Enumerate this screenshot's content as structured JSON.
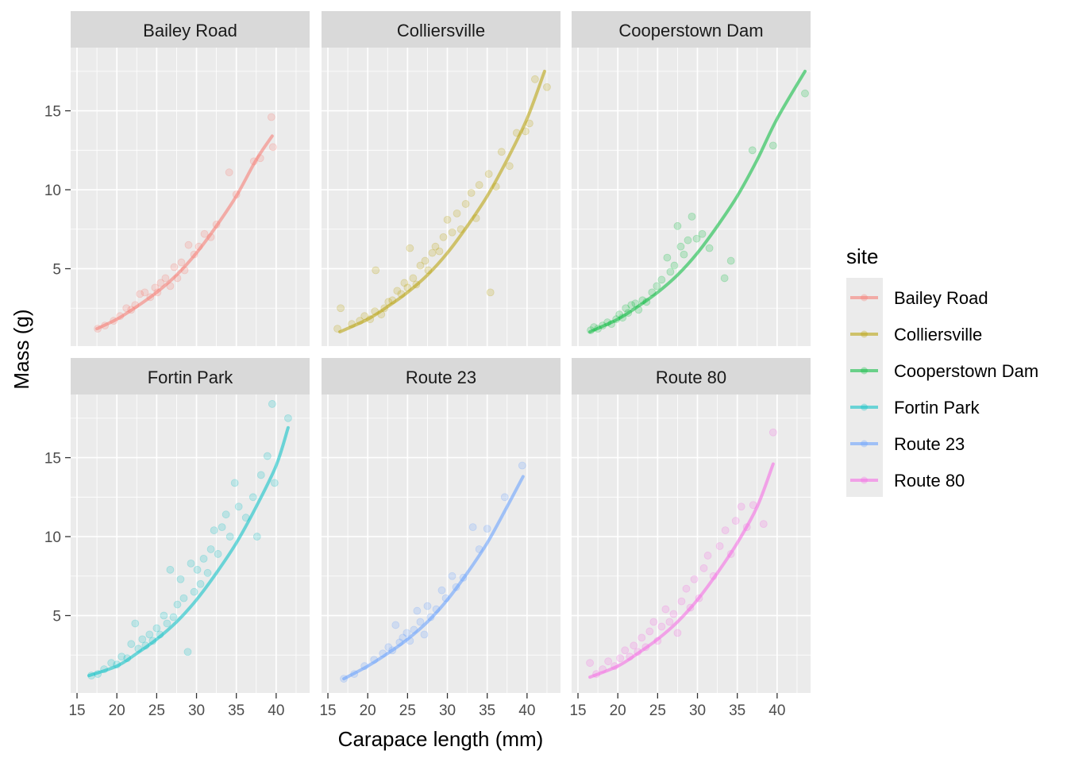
{
  "chart_data": {
    "type": "scatter",
    "xlabel": "Carapace length (mm)",
    "ylabel": "Mass (g)",
    "xlim": [
      14.2,
      44.2
    ],
    "ylim": [
      0.1,
      19.0
    ],
    "x_ticks": [
      15,
      20,
      25,
      30,
      35,
      40
    ],
    "y_ticks": [
      5,
      10,
      15
    ],
    "grid": true,
    "facet_layout": "2 rows x 3 columns, shared axes",
    "legend": {
      "title": "site",
      "position": "right"
    },
    "point_alpha": 0.2,
    "fit": "smooth curve per panel",
    "panels": [
      {
        "name": "Bailey Road",
        "color": "#F8766D",
        "curve": {
          "x": [
            17.5,
            20,
            22.5,
            25,
            27.5,
            30,
            32.5,
            35,
            37.5,
            39.5
          ],
          "y": [
            1.2,
            1.8,
            2.6,
            3.5,
            4.6,
            6.0,
            7.7,
            9.6,
            11.9,
            13.4
          ]
        },
        "points": [
          [
            17.6,
            1.2
          ],
          [
            18.5,
            1.4
          ],
          [
            19.6,
            1.7
          ],
          [
            20.4,
            2.0
          ],
          [
            21.2,
            2.5
          ],
          [
            21.8,
            2.4
          ],
          [
            22.3,
            2.7
          ],
          [
            22.9,
            3.4
          ],
          [
            23.5,
            3.5
          ],
          [
            24.2,
            3.2
          ],
          [
            24.8,
            3.8
          ],
          [
            25.1,
            3.5
          ],
          [
            25.5,
            4.1
          ],
          [
            26.1,
            4.4
          ],
          [
            26.7,
            3.9
          ],
          [
            27.2,
            5.1
          ],
          [
            27.6,
            4.4
          ],
          [
            28.1,
            5.4
          ],
          [
            28.5,
            4.9
          ],
          [
            29.0,
            6.5
          ],
          [
            29.7,
            5.9
          ],
          [
            30.3,
            6.4
          ],
          [
            31.0,
            7.2
          ],
          [
            31.8,
            7.0
          ],
          [
            32.5,
            7.8
          ],
          [
            34.1,
            11.1
          ],
          [
            35.0,
            9.7
          ],
          [
            37.2,
            11.8
          ],
          [
            38.0,
            12.0
          ],
          [
            39.4,
            14.6
          ],
          [
            39.6,
            12.7
          ]
        ]
      },
      {
        "name": "Colliersville",
        "color": "#B79F00",
        "curve": {
          "x": [
            16.5,
            20,
            22.5,
            25,
            27.5,
            30,
            32.5,
            35,
            37.5,
            40,
            42.2
          ],
          "y": [
            1.0,
            1.8,
            2.6,
            3.5,
            4.6,
            6.0,
            7.7,
            9.6,
            11.9,
            14.5,
            17.5
          ]
        },
        "points": [
          [
            16.2,
            1.2
          ],
          [
            16.6,
            2.5
          ],
          [
            18.0,
            1.5
          ],
          [
            19.0,
            1.7
          ],
          [
            19.6,
            2.0
          ],
          [
            20.3,
            1.8
          ],
          [
            20.9,
            2.3
          ],
          [
            21.0,
            4.9
          ],
          [
            21.7,
            2.1
          ],
          [
            22.1,
            2.5
          ],
          [
            22.6,
            2.9
          ],
          [
            23.1,
            3.0
          ],
          [
            23.7,
            3.6
          ],
          [
            24.2,
            3.4
          ],
          [
            24.6,
            4.1
          ],
          [
            25.0,
            3.8
          ],
          [
            25.3,
            6.3
          ],
          [
            25.7,
            4.4
          ],
          [
            26.1,
            4.0
          ],
          [
            26.6,
            5.2
          ],
          [
            27.2,
            5.5
          ],
          [
            27.6,
            4.9
          ],
          [
            28.1,
            6.0
          ],
          [
            28.5,
            6.4
          ],
          [
            29.0,
            6.1
          ],
          [
            29.5,
            7.0
          ],
          [
            30.0,
            8.1
          ],
          [
            30.6,
            7.3
          ],
          [
            31.2,
            8.5
          ],
          [
            31.7,
            7.5
          ],
          [
            32.3,
            9.1
          ],
          [
            33.0,
            9.8
          ],
          [
            33.6,
            8.2
          ],
          [
            34.0,
            10.3
          ],
          [
            35.2,
            11.0
          ],
          [
            35.4,
            3.5
          ],
          [
            36.1,
            10.2
          ],
          [
            36.8,
            12.4
          ],
          [
            37.8,
            11.5
          ],
          [
            38.7,
            13.6
          ],
          [
            39.8,
            13.7
          ],
          [
            40.3,
            14.2
          ],
          [
            41.0,
            17.0
          ],
          [
            42.5,
            16.5
          ]
        ]
      },
      {
        "name": "Cooperstown Dam",
        "color": "#00BA38",
        "curve": {
          "x": [
            16.5,
            20,
            22.5,
            25,
            27.5,
            30,
            32.5,
            35,
            37.5,
            40,
            43.5
          ],
          "y": [
            1.0,
            1.8,
            2.6,
            3.5,
            4.6,
            6.0,
            7.7,
            9.6,
            11.9,
            14.5,
            17.5
          ]
        },
        "points": [
          [
            16.6,
            1.1
          ],
          [
            17.0,
            1.3
          ],
          [
            17.5,
            1.2
          ],
          [
            18.1,
            1.4
          ],
          [
            18.7,
            1.6
          ],
          [
            19.2,
            1.5
          ],
          [
            19.8,
            1.8
          ],
          [
            20.2,
            2.1
          ],
          [
            20.6,
            1.9
          ],
          [
            21.0,
            2.5
          ],
          [
            21.3,
            2.2
          ],
          [
            21.7,
            2.7
          ],
          [
            22.2,
            2.8
          ],
          [
            22.6,
            2.4
          ],
          [
            23.1,
            3.0
          ],
          [
            23.6,
            2.9
          ],
          [
            24.3,
            3.5
          ],
          [
            24.9,
            3.9
          ],
          [
            25.5,
            4.3
          ],
          [
            26.2,
            5.7
          ],
          [
            26.6,
            4.8
          ],
          [
            27.1,
            5.2
          ],
          [
            27.5,
            7.7
          ],
          [
            27.9,
            6.4
          ],
          [
            28.3,
            5.9
          ],
          [
            28.8,
            6.8
          ],
          [
            29.3,
            8.3
          ],
          [
            29.9,
            6.9
          ],
          [
            30.6,
            7.2
          ],
          [
            31.5,
            6.3
          ],
          [
            33.4,
            4.4
          ],
          [
            34.2,
            5.5
          ],
          [
            36.9,
            12.5
          ],
          [
            39.5,
            12.8
          ],
          [
            43.5,
            16.1
          ]
        ]
      },
      {
        "name": "Fortin Park",
        "color": "#00BFC4",
        "curve": {
          "x": [
            16.5,
            20,
            22.5,
            25,
            27.5,
            30,
            32.5,
            35,
            37.5,
            40,
            41.5
          ],
          "y": [
            1.2,
            1.8,
            2.6,
            3.5,
            4.6,
            6.0,
            7.7,
            9.6,
            11.9,
            14.5,
            16.9
          ]
        },
        "points": [
          [
            16.8,
            1.2
          ],
          [
            17.6,
            1.3
          ],
          [
            18.4,
            1.6
          ],
          [
            19.3,
            2.0
          ],
          [
            20.0,
            1.9
          ],
          [
            20.6,
            2.4
          ],
          [
            21.3,
            2.3
          ],
          [
            21.8,
            3.2
          ],
          [
            22.3,
            4.5
          ],
          [
            22.7,
            2.9
          ],
          [
            23.2,
            3.5
          ],
          [
            23.6,
            3.1
          ],
          [
            24.1,
            3.8
          ],
          [
            24.5,
            3.4
          ],
          [
            25.0,
            4.2
          ],
          [
            25.4,
            3.8
          ],
          [
            25.9,
            5.0
          ],
          [
            26.3,
            4.5
          ],
          [
            26.7,
            7.9
          ],
          [
            27.1,
            4.9
          ],
          [
            27.6,
            5.7
          ],
          [
            28.0,
            7.3
          ],
          [
            28.4,
            6.1
          ],
          [
            28.9,
            2.7
          ],
          [
            29.3,
            8.3
          ],
          [
            29.7,
            6.5
          ],
          [
            30.1,
            7.9
          ],
          [
            30.5,
            7.0
          ],
          [
            30.9,
            8.6
          ],
          [
            31.4,
            7.7
          ],
          [
            31.8,
            9.2
          ],
          [
            32.2,
            10.4
          ],
          [
            32.7,
            8.9
          ],
          [
            33.2,
            10.6
          ],
          [
            33.7,
            11.4
          ],
          [
            34.2,
            10.0
          ],
          [
            34.8,
            13.4
          ],
          [
            35.3,
            11.9
          ],
          [
            36.2,
            11.2
          ],
          [
            37.1,
            12.5
          ],
          [
            37.6,
            10.0
          ],
          [
            38.1,
            13.9
          ],
          [
            38.9,
            15.1
          ],
          [
            39.5,
            18.4
          ],
          [
            39.8,
            13.4
          ],
          [
            41.5,
            17.5
          ]
        ]
      },
      {
        "name": "Route 23",
        "color": "#619CFF",
        "curve": {
          "x": [
            17.0,
            20,
            22.5,
            25,
            27.5,
            30,
            32.5,
            35,
            37.5,
            39.5
          ],
          "y": [
            1.0,
            1.8,
            2.6,
            3.5,
            4.6,
            6.0,
            7.7,
            9.6,
            11.9,
            13.8
          ]
        },
        "points": [
          [
            17.0,
            1.0
          ],
          [
            18.3,
            1.3
          ],
          [
            19.6,
            1.8
          ],
          [
            20.8,
            2.2
          ],
          [
            21.9,
            2.6
          ],
          [
            22.6,
            3.0
          ],
          [
            23.1,
            2.8
          ],
          [
            23.5,
            4.4
          ],
          [
            24.0,
            3.3
          ],
          [
            24.4,
            3.6
          ],
          [
            24.9,
            3.9
          ],
          [
            25.3,
            3.4
          ],
          [
            25.8,
            4.1
          ],
          [
            26.2,
            5.3
          ],
          [
            26.6,
            4.6
          ],
          [
            27.1,
            3.8
          ],
          [
            27.5,
            5.6
          ],
          [
            27.9,
            4.9
          ],
          [
            28.6,
            5.4
          ],
          [
            29.3,
            6.6
          ],
          [
            29.8,
            6.1
          ],
          [
            30.6,
            7.5
          ],
          [
            31.1,
            6.8
          ],
          [
            32.0,
            7.4
          ],
          [
            33.2,
            10.6
          ],
          [
            34.0,
            9.2
          ],
          [
            35.0,
            10.5
          ],
          [
            37.2,
            12.5
          ],
          [
            39.4,
            14.5
          ]
        ]
      },
      {
        "name": "Route 80",
        "color": "#F564E3",
        "curve": {
          "x": [
            16.5,
            20,
            22.5,
            25,
            27.5,
            30,
            32.5,
            35,
            37.5,
            39.5
          ],
          "y": [
            1.1,
            1.8,
            2.6,
            3.5,
            4.6,
            6.0,
            7.7,
            9.6,
            11.9,
            14.6
          ]
        },
        "points": [
          [
            16.5,
            2.0
          ],
          [
            17.3,
            1.3
          ],
          [
            18.1,
            1.6
          ],
          [
            18.8,
            2.1
          ],
          [
            19.6,
            1.8
          ],
          [
            20.3,
            2.3
          ],
          [
            20.9,
            2.8
          ],
          [
            21.5,
            2.4
          ],
          [
            22.0,
            3.1
          ],
          [
            22.5,
            2.7
          ],
          [
            23.0,
            3.6
          ],
          [
            23.5,
            3.0
          ],
          [
            24.0,
            4.0
          ],
          [
            24.5,
            4.6
          ],
          [
            25.0,
            3.4
          ],
          [
            25.5,
            4.3
          ],
          [
            26.0,
            5.4
          ],
          [
            26.5,
            4.6
          ],
          [
            27.0,
            5.1
          ],
          [
            27.5,
            3.9
          ],
          [
            28.0,
            5.9
          ],
          [
            28.6,
            6.7
          ],
          [
            29.1,
            5.5
          ],
          [
            29.6,
            7.3
          ],
          [
            30.2,
            6.1
          ],
          [
            30.8,
            8.0
          ],
          [
            31.3,
            8.8
          ],
          [
            32.0,
            7.5
          ],
          [
            32.8,
            9.4
          ],
          [
            33.5,
            10.4
          ],
          [
            34.2,
            8.9
          ],
          [
            34.8,
            11.0
          ],
          [
            35.5,
            11.9
          ],
          [
            36.2,
            10.6
          ],
          [
            37.0,
            12.0
          ],
          [
            38.3,
            10.8
          ],
          [
            39.5,
            16.6
          ]
        ]
      }
    ]
  }
}
